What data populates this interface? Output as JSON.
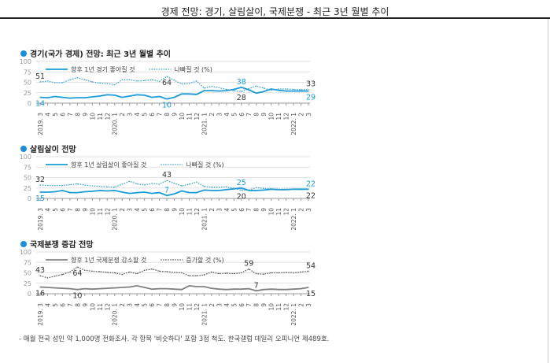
{
  "title": "경제 전망: 경기, 살림살이, 국제분쟁 - 최근 3년 월별 추이",
  "footnote": "- 매월 전국 성인 약 1,000명 전화조사. 각 항목 '비슷하다' 포함 3점 척도. 한국갤럽 데일리 오피니언 제489호.",
  "chart_data": [
    {
      "type": "line",
      "title": "경기(국가 경제) 전망: 최근 3년 월별 추이",
      "ylim": [
        0,
        100
      ],
      "yticks": [
        "0",
        "25",
        "50",
        "75",
        "100"
      ],
      "grid": true,
      "legend_placement": "top-left",
      "x_labels": [
        "2019. 3",
        "4",
        "5",
        "6",
        "7",
        "8",
        "9",
        "10",
        "11",
        "12",
        "2020. 1",
        "2",
        "3",
        "4",
        "5",
        "6",
        "7",
        "8",
        "9",
        "10",
        "11",
        "12",
        "2021. 1",
        "2",
        "3",
        "4",
        "5",
        "6",
        "7",
        "8",
        "9",
        "10",
        "11",
        "12",
        "2022. 1",
        "2",
        "3"
      ],
      "series": [
        {
          "name": "향후 1년 경기 좋아질 것",
          "style": "solid",
          "color": "#1a9bd7",
          "values": [
            14,
            13,
            16,
            14,
            12,
            13,
            13,
            15,
            17,
            20,
            19,
            14,
            17,
            20,
            19,
            14,
            16,
            10,
            14,
            22,
            22,
            21,
            30,
            30,
            29,
            30,
            33,
            38,
            32,
            24,
            28,
            34,
            31,
            29,
            29,
            29,
            29
          ]
        },
        {
          "name": "나빠질 것 (%)",
          "style": "dotted",
          "color": "#3aa3cc",
          "values": [
            51,
            53,
            49,
            49,
            56,
            61,
            56,
            51,
            48,
            47,
            44,
            56,
            56,
            53,
            54,
            56,
            52,
            64,
            55,
            46,
            47,
            53,
            36,
            40,
            37,
            33,
            30,
            28,
            35,
            41,
            36,
            31,
            34,
            34,
            33,
            32,
            33
          ]
        }
      ],
      "annotations": [
        {
          "series": 1,
          "index": 0,
          "text": "51",
          "pos": "above",
          "color": "#333"
        },
        {
          "series": 0,
          "index": 0,
          "text": "14",
          "pos": "below",
          "color": "#1a9bd7"
        },
        {
          "series": 1,
          "index": 17,
          "text": "64",
          "pos": "below",
          "color": "#333"
        },
        {
          "series": 0,
          "index": 17,
          "text": "10",
          "pos": "below",
          "color": "#1a9bd7"
        },
        {
          "series": 0,
          "index": 27,
          "text": "38",
          "pos": "above",
          "color": "#1a9bd7"
        },
        {
          "series": 1,
          "index": 27,
          "text": "28",
          "pos": "below",
          "color": "#333"
        },
        {
          "series": 1,
          "index": 36,
          "text": "33",
          "pos": "above",
          "color": "#333"
        },
        {
          "series": 0,
          "index": 36,
          "text": "29",
          "pos": "below",
          "color": "#1a9bd7"
        }
      ]
    },
    {
      "type": "line",
      "title": "살림살이 전망",
      "ylim": [
        0,
        100
      ],
      "yticks": [
        "0",
        "25",
        "50",
        "75",
        "100"
      ],
      "grid": true,
      "legend_placement": "top-left",
      "x_labels": [
        "2019. 3",
        "4",
        "5",
        "6",
        "7",
        "8",
        "9",
        "10",
        "11",
        "12",
        "2020. 1",
        "2",
        "3",
        "4",
        "5",
        "6",
        "7",
        "8",
        "9",
        "10",
        "11",
        "12",
        "2021. 1",
        "2",
        "3",
        "4",
        "5",
        "6",
        "7",
        "8",
        "9",
        "10",
        "11",
        "12",
        "2022. 1",
        "2",
        "3"
      ],
      "series": [
        {
          "name": "향후 1년 살림살이 좋아질 것",
          "style": "solid",
          "color": "#1a9bd7",
          "values": [
            15,
            15,
            16,
            19,
            14,
            14,
            16,
            17,
            19,
            18,
            19,
            15,
            12,
            14,
            15,
            12,
            14,
            7,
            11,
            18,
            14,
            14,
            20,
            19,
            19,
            21,
            23,
            25,
            19,
            19,
            20,
            22,
            21,
            21,
            22,
            22,
            22
          ]
        },
        {
          "name": "나빠질 것 (%)",
          "style": "dotted",
          "color": "#3aa3cc",
          "values": [
            32,
            31,
            31,
            31,
            33,
            35,
            32,
            30,
            29,
            28,
            27,
            34,
            41,
            35,
            32,
            36,
            34,
            43,
            36,
            30,
            34,
            39,
            29,
            27,
            27,
            28,
            24,
            20,
            20,
            26,
            24,
            23,
            22,
            22,
            22,
            21,
            22
          ]
        }
      ],
      "annotations": [
        {
          "series": 1,
          "index": 0,
          "text": "32",
          "pos": "above",
          "color": "#333"
        },
        {
          "series": 0,
          "index": 0,
          "text": "15",
          "pos": "below",
          "color": "#1a9bd7"
        },
        {
          "series": 1,
          "index": 17,
          "text": "43",
          "pos": "above",
          "color": "#333"
        },
        {
          "series": 0,
          "index": 17,
          "text": "7",
          "pos": "above",
          "color": "#1a9bd7"
        },
        {
          "series": 0,
          "index": 27,
          "text": "25",
          "pos": "above",
          "color": "#1a9bd7"
        },
        {
          "series": 1,
          "index": 27,
          "text": "20",
          "pos": "below",
          "color": "#333"
        },
        {
          "series": 0,
          "index": 36,
          "text": "22",
          "pos": "above",
          "color": "#1a9bd7"
        },
        {
          "series": 1,
          "index": 36,
          "text": "22",
          "pos": "below",
          "color": "#333"
        }
      ]
    },
    {
      "type": "line",
      "title": "국제분쟁 증감 전망",
      "ylim": [
        0,
        100
      ],
      "yticks": [
        "0",
        "25",
        "50",
        "75",
        "100"
      ],
      "grid": true,
      "legend_placement": "top-left",
      "x_labels": [
        "2019. 3",
        "4",
        "5",
        "6",
        "7",
        "8",
        "9",
        "10",
        "11",
        "12",
        "2020. 1",
        "2",
        "3",
        "4",
        "5",
        "6",
        "7",
        "8",
        "9",
        "10",
        "11",
        "12",
        "2021. 1",
        "2",
        "3",
        "4",
        "5",
        "6",
        "7",
        "8",
        "9",
        "10",
        "11",
        "12",
        "2022. 1",
        "2",
        "3"
      ],
      "series": [
        {
          "name": "향후 1년 국제분쟁 감소할 것",
          "style": "solid",
          "color": "#808080",
          "values": [
            16,
            15,
            14,
            13,
            12,
            10,
            12,
            11,
            12,
            13,
            14,
            15,
            16,
            19,
            15,
            11,
            12,
            12,
            11,
            10,
            19,
            17,
            17,
            13,
            11,
            10,
            11,
            11,
            12,
            7,
            10,
            11,
            10,
            10,
            11,
            12,
            15
          ]
        },
        {
          "name": "증가할 것 (%)",
          "style": "dotted",
          "color": "#555555",
          "values": [
            43,
            38,
            42,
            46,
            52,
            64,
            56,
            54,
            53,
            51,
            50,
            46,
            52,
            48,
            56,
            59,
            54,
            53,
            51,
            50,
            43,
            43,
            45,
            52,
            48,
            49,
            48,
            50,
            59,
            48,
            47,
            50,
            50,
            51,
            50,
            52,
            54
          ]
        }
      ],
      "annotations": [
        {
          "series": 1,
          "index": 0,
          "text": "43",
          "pos": "above",
          "color": "#333"
        },
        {
          "series": 0,
          "index": 0,
          "text": "16",
          "pos": "below",
          "color": "#333"
        },
        {
          "series": 1,
          "index": 5,
          "text": "64",
          "pos": "below",
          "color": "#333"
        },
        {
          "series": 0,
          "index": 5,
          "text": "10",
          "pos": "below",
          "color": "#333"
        },
        {
          "series": 1,
          "index": 28,
          "text": "59",
          "pos": "above",
          "color": "#333"
        },
        {
          "series": 0,
          "index": 29,
          "text": "7",
          "pos": "above",
          "color": "#333"
        },
        {
          "series": 1,
          "index": 36,
          "text": "54",
          "pos": "above",
          "color": "#333"
        },
        {
          "series": 0,
          "index": 36,
          "text": "15",
          "pos": "below",
          "color": "#333"
        }
      ]
    }
  ]
}
